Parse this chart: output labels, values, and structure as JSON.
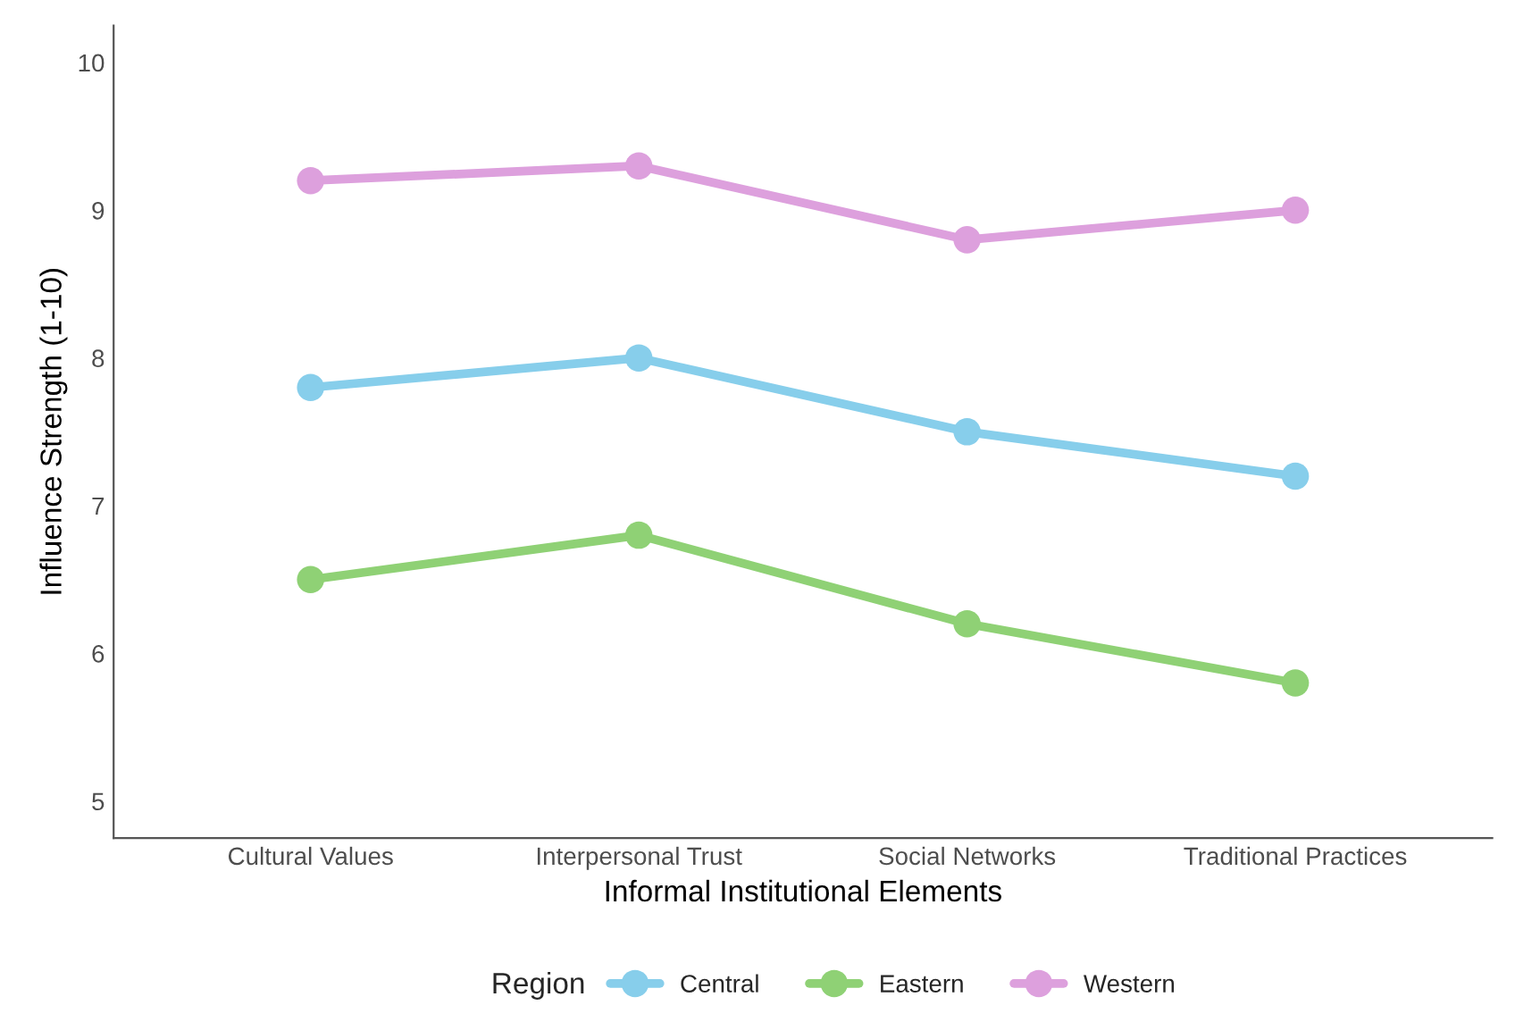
{
  "chart_data": {
    "type": "line",
    "xlabel": "Informal Institutional Elements",
    "ylabel": "Influence Strength (1-10)",
    "legend_title": "Region",
    "categories": [
      "Cultural Values",
      "Interpersonal Trust",
      "Social Networks",
      "Traditional Practices"
    ],
    "series": [
      {
        "name": "Central",
        "color": "#87ceeb",
        "values": [
          7.8,
          8.0,
          7.5,
          7.2
        ]
      },
      {
        "name": "Eastern",
        "color": "#8fd175",
        "values": [
          6.5,
          6.8,
          6.2,
          5.8
        ]
      },
      {
        "name": "Western",
        "color": "#dda0dd",
        "values": [
          9.2,
          9.3,
          8.8,
          9.0
        ]
      }
    ],
    "ylim": [
      4.75,
      10.25
    ],
    "yticks": [
      5,
      6,
      7,
      8,
      9,
      10
    ],
    "grid": false,
    "legend": "bottom",
    "marker": "circle",
    "line_style": "solid"
  }
}
